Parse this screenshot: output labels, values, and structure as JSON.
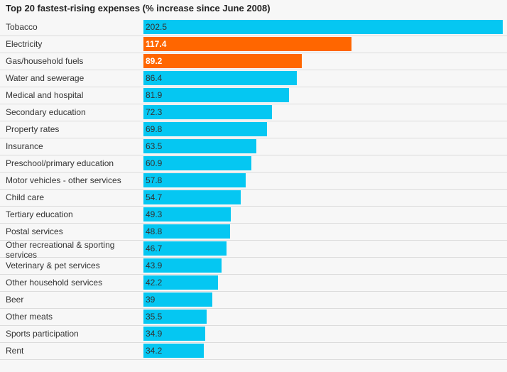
{
  "title": "Top 20 fastest-rising expenses (% increase since June 2008)",
  "colors": {
    "default_bar": "#05c7f2",
    "highlight_bar": "#ff6600",
    "background": "#f7f7f7"
  },
  "chart_data": {
    "type": "bar",
    "orientation": "horizontal",
    "title": "Top 20 fastest-rising expenses (% increase since June 2008)",
    "categories": [
      "Tobacco",
      "Electricity",
      "Gas/household fuels",
      "Water and sewerage",
      "Medical and hospital",
      "Secondary education",
      "Property rates",
      "Insurance",
      "Preschool/primary education",
      "Motor vehicles - other services",
      "Child care",
      "Tertiary education",
      "Postal services",
      "Other recreational & sporting services",
      "Veterinary & pet services",
      "Other household services",
      "Beer",
      "Other meats",
      "Sports participation",
      "Rent"
    ],
    "values": [
      202.5,
      117.4,
      89.2,
      86.4,
      81.9,
      72.3,
      69.8,
      63.5,
      60.9,
      57.8,
      54.7,
      49.3,
      48.8,
      46.7,
      43.9,
      42.2,
      39,
      35.5,
      34.9,
      34.2
    ],
    "value_labels": [
      "202.5",
      "117.4",
      "89.2",
      "86.4",
      "81.9",
      "72.3",
      "69.8",
      "63.5",
      "60.9",
      "57.8",
      "54.7",
      "49.3",
      "48.8",
      "46.7",
      "43.9",
      "42.2",
      "39",
      "35.5",
      "34.9",
      "34.2"
    ],
    "highlighted": [
      "Electricity",
      "Gas/household fuels"
    ],
    "xlim": [
      0,
      202.5
    ],
    "grid": false,
    "legend": "none"
  }
}
